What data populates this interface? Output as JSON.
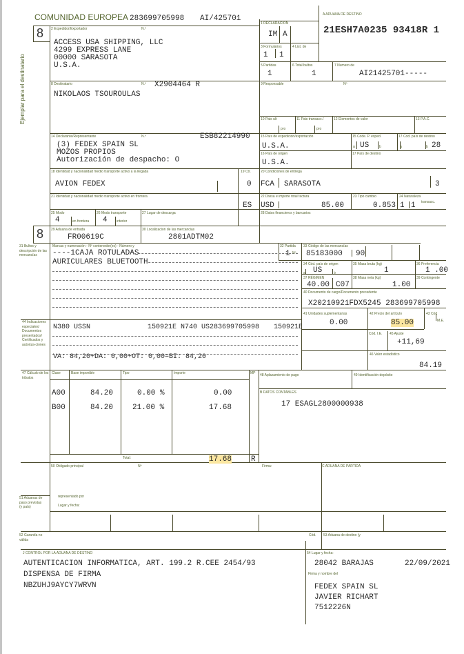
{
  "header": {
    "title": "COMUNIDAD EUROPEA",
    "ref1": "283699705998",
    "ref2": "AI/425701",
    "copy_number": "8",
    "copy_number_2": "8",
    "side_text": "Ejemplar para el destinatario"
  },
  "box_a": {
    "label": "A ADUANA DE DESTINO",
    "value": "21ESH7A0235 93418R 1"
  },
  "box2": {
    "label": "2 Expedidor/Exportador",
    "no_label": "N.º",
    "lines": [
      "ACCESS USA SHIPPING, LLC",
      "4299 EXPRESS LANE",
      "00000 SARASOTA",
      "U.S.A."
    ]
  },
  "box1": {
    "label": "1 DECLARACIÓN",
    "v1": "IM",
    "v2": "A"
  },
  "box3": {
    "label": "3 Formularios",
    "v1": "1",
    "v2": "1"
  },
  "box4": {
    "label": "4 List. de"
  },
  "box5": {
    "label": "5 Partidas",
    "value": "1"
  },
  "box6": {
    "label": "6 Total bultos",
    "value": "1"
  },
  "box7": {
    "label": "7 Numero de",
    "value": "AI21425701-----"
  },
  "box8": {
    "label": "8 Destinatario",
    "no_label": "N.º",
    "no": "X2904464 R",
    "name": "NIKOLAOS TSOUROULAS"
  },
  "box9": {
    "label": "9 Responsable",
    "no_label": "Nº"
  },
  "box10": {
    "label": "10 Pais ult",
    "sub": "pro"
  },
  "box11": {
    "label": "11 Pais transacc./",
    "sub": "pro"
  },
  "box12": {
    "label": "12 Elementos de valor"
  },
  "box13": {
    "label": "13 P.A.C."
  },
  "box14": {
    "label": "14 Declarante/Representante",
    "no_label": "N.º",
    "no": "ESB82214990",
    "lines": [
      "(3) FEDEX SPAIN SL",
      "MOZOS PROPIOS",
      "Autorización de despacho: O"
    ]
  },
  "box15": {
    "label": "15 País de expedición/exportación",
    "value": "U.S.A.",
    "code_label": "15 Code. P. exped.",
    "a": "a",
    "code": "US",
    "b": "b"
  },
  "box17a": {
    "label": "17 Cod. país de destino",
    "a": "a",
    "b": "b",
    "code": "28"
  },
  "box16": {
    "label": "16 País de origen",
    "value": "U.S.A."
  },
  "box17": {
    "label": "17 País de destino"
  },
  "box18": {
    "label": "18 Identidad y nacionalidad medio transporte activo a la llegada",
    "value": "AVION FEDEX"
  },
  "box19": {
    "label": "19 Ctr.",
    "value": "0"
  },
  "box20": {
    "label": "20 Condiciones de entrega",
    "v1": "FCA",
    "v2": "SARASOTA",
    "v3": "3"
  },
  "box21": {
    "label": "21 Identidad y nacionalidad medio transporte activo en frontera",
    "value": "ES"
  },
  "box22": {
    "label": "22 Divisa e importe total factura",
    "currency": "USD",
    "amount": "85.00"
  },
  "box23": {
    "label": "23 Tipo cambio",
    "value": "0.853"
  },
  "box24": {
    "label": "24 Naturaleza",
    "sub": "transacc.",
    "v1": "1",
    "v2": "1"
  },
  "box25": {
    "label": "25 Modo",
    "sub": "en frontera",
    "value": "4"
  },
  "box26": {
    "label": "26 Modo transporte",
    "sub": "interior",
    "value": "4"
  },
  "box27": {
    "label": "27 Lugar de descarga"
  },
  "box28": {
    "label": "28 Datos financieros y bancarios"
  },
  "box29": {
    "label": "29 Aduana de entrada",
    "value": "FR00619C"
  },
  "box30": {
    "label": "30 Localizacion de las mercancias",
    "value": "2801ADTM02"
  },
  "box31": {
    "label": "31 Bultos y descripción de las mercancías",
    "sub": "Marcas y numeración - Nº contenedor(es) - Número y",
    "lines": [
      "----1CAJA ROTULADAS",
      "AURICULARES BLUETOOTH"
    ]
  },
  "box32": {
    "label": "32 Partida",
    "value": "1",
    "no": "Nº"
  },
  "box33": {
    "label": "33 Código de las mercancías",
    "v1": "85183000",
    "v2": "90"
  },
  "box34": {
    "label": "34 Cód. país de origen",
    "a": "a",
    "b": "b",
    "value": "US"
  },
  "box35": {
    "label": "35 Masa bruta (kg)",
    "value": "1"
  },
  "box36": {
    "label": "36 Preferencia",
    "value": "1 .00"
  },
  "box37": {
    "label": "37 RÉGIMEN",
    "v1": "40.00",
    "v2": "C07"
  },
  "box38": {
    "label": "38 Masa neta (kg)",
    "value": "1.00"
  },
  "box39": {
    "label": "39 Contingente"
  },
  "box40": {
    "label": "40 Documento de cargo/Documento precedente",
    "value": "X20210921FDX5245 283699705998"
  },
  "box41": {
    "label": "41 Unidades suplementarias",
    "value": "0.00"
  },
  "box42": {
    "label": "42 Precio del artículo",
    "value": "85.00"
  },
  "box43": {
    "label": "43 Cód",
    "sub": "M.E."
  },
  "box44": {
    "label": "44 Indicaciones especiales/ Documentos presentados/ Certificados y autoriza-ciones",
    "l1a": "N380  USSN",
    "l1b": "150921E N740  US283699705998",
    "l1c": "150921E",
    "summary": "VA:   84,20+DA:  0,00+OT:  0,00=BI:  84,20"
  },
  "box45": {
    "cod_label": "Cód. I.E.",
    "label": "45 Ajuste",
    "value": "+11,69"
  },
  "box46": {
    "label": "46 Valor estadístico",
    "value": "84.19"
  },
  "box47": {
    "label": "47 Cálculo de los tributos",
    "headers": [
      "Clase",
      "Base imponible",
      "Tipo",
      "Importe",
      "MP"
    ],
    "rows": [
      [
        "A00",
        "84.20",
        "0.00 %",
        "0.00"
      ],
      [
        "B00",
        "84.20",
        "21.00 %",
        "17.68"
      ]
    ],
    "total_label": "Total:",
    "total": "17.68",
    "mp": "R"
  },
  "box48": {
    "label": "48 Aplazamiento de pago"
  },
  "box49": {
    "label": "49 Identificación depósito"
  },
  "boxB": {
    "label": "B DATOS CONTABLES",
    "value": "17 ESAGL2800000938"
  },
  "box50": {
    "label": "50 Obligado principal",
    "no_label": "Nº",
    "sign_label": "Firma:",
    "rep_label": "representado por",
    "place_label": "Lugar y fecha:"
  },
  "boxC": {
    "label": "C ADUANA DE PARTIDA"
  },
  "box51": {
    "label": "51 Aduanas de paso previstas (y país)"
  },
  "box52": {
    "label": "52 Garantía no válida",
    "cod_label": "Cód."
  },
  "box53": {
    "label": "53 Aduana de destino (y"
  },
  "boxJ": {
    "label": "J CONTROL POR LA ADUANA DE DESTINO",
    "lines": [
      "AUTENTICACION INFORMATICA, ART. 199.2 R.CEE 2454/93",
      "DISPENSA DE FIRMA",
      "NBZUHJ9AYCY7WRVN"
    ]
  },
  "box54": {
    "label": "54 Lugar y fecha:",
    "place": "28042 BARAJAS",
    "date": "22/09/2021",
    "sign_label": "Firma y nombre del",
    "lines": [
      "FEDEX SPAIN SL",
      "JAVIER RICHART",
      "7512226N"
    ]
  },
  "colors": {
    "line": "#4a4a2c",
    "label": "#55652f",
    "highlight": "#fbe6a0"
  }
}
